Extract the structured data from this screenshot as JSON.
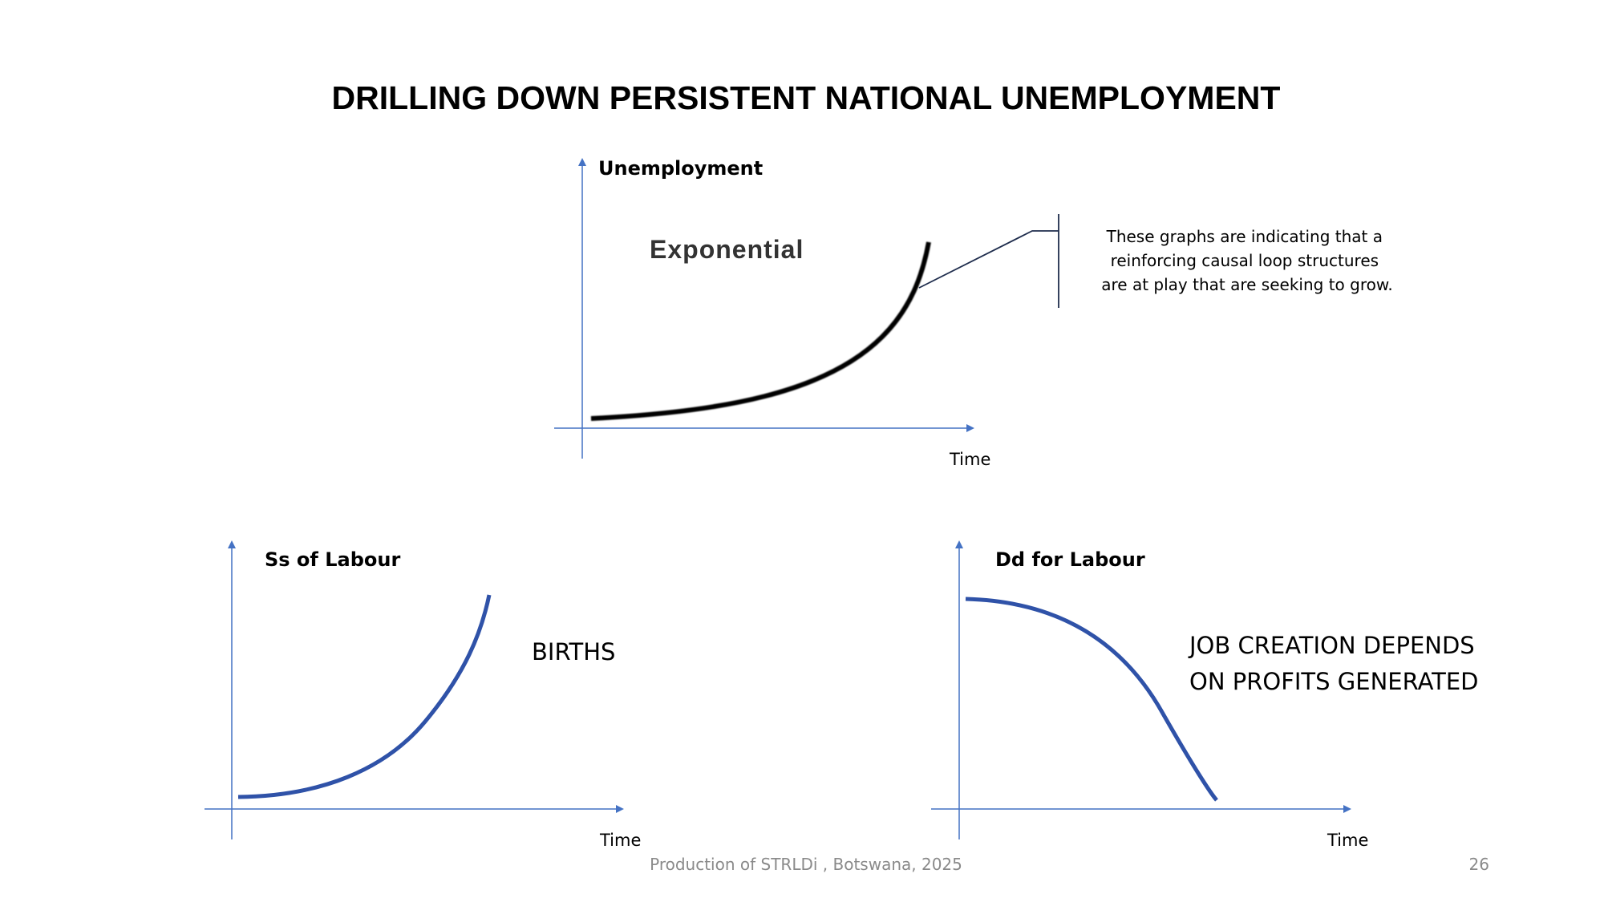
{
  "title": "DRILLING DOWN PERSISTENT NATIONAL UNEMPLOYMENT",
  "colors": {
    "axis": "#4472c4",
    "curve_top": "#000000",
    "curve_bottom": "#2f52a8",
    "footer": "#8a8a8a"
  },
  "top_graph": {
    "y_label": "Unemployment",
    "x_label": "Time",
    "curve_label": "Exponential",
    "note_lines": [
      "These graphs are indicating that a",
      "reinforcing causal loop structures",
      "are at play that are seeking to grow."
    ]
  },
  "left_graph": {
    "y_label": "Ss of Labour",
    "x_label": "Time",
    "annotation": "BIRTHS"
  },
  "right_graph": {
    "y_label": "Dd for Labour",
    "x_label": "Time",
    "annotation_lines": [
      "JOB CREATION DEPENDS",
      "ON PROFITS GENERATED"
    ]
  },
  "footer": {
    "text": "Production of STRLDi , Botswana, 2025",
    "page_number": "26"
  }
}
